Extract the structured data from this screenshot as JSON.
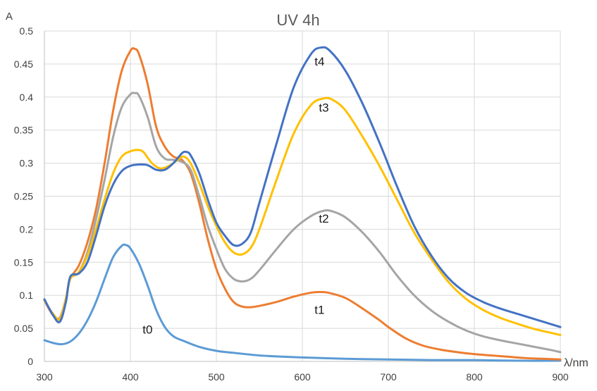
{
  "chart_data": {
    "type": "line",
    "title": "UV 4h",
    "xlabel": "λ/nm",
    "ylabel": "A",
    "xlim": [
      300,
      900
    ],
    "ylim": [
      0,
      0.5
    ],
    "x_ticks": [
      300,
      400,
      500,
      600,
      700,
      800,
      900
    ],
    "y_ticks": [
      0,
      0.05,
      0.1,
      0.15,
      0.2,
      0.25,
      0.3,
      0.35,
      0.4,
      0.45,
      0.5
    ],
    "grid": true,
    "legend": "none",
    "series": [
      {
        "name": "t0",
        "color": "#5B9BD5",
        "points": [
          [
            300,
            0.032
          ],
          [
            310,
            0.028
          ],
          [
            320,
            0.026
          ],
          [
            330,
            0.03
          ],
          [
            340,
            0.042
          ],
          [
            350,
            0.062
          ],
          [
            360,
            0.09
          ],
          [
            370,
            0.125
          ],
          [
            380,
            0.158
          ],
          [
            390,
            0.175
          ],
          [
            395,
            0.176
          ],
          [
            400,
            0.171
          ],
          [
            410,
            0.148
          ],
          [
            420,
            0.115
          ],
          [
            430,
            0.078
          ],
          [
            440,
            0.052
          ],
          [
            450,
            0.038
          ],
          [
            460,
            0.032
          ],
          [
            480,
            0.022
          ],
          [
            500,
            0.016
          ],
          [
            520,
            0.013
          ],
          [
            550,
            0.009
          ],
          [
            580,
            0.007
          ],
          [
            600,
            0.006
          ],
          [
            650,
            0.004
          ],
          [
            700,
            0.003
          ],
          [
            750,
            0.002
          ],
          [
            800,
            0.002
          ],
          [
            850,
            0.001
          ],
          [
            900,
            0.001
          ]
        ]
      },
      {
        "name": "t1",
        "color": "#ED7D31",
        "points": [
          [
            300,
            0.092
          ],
          [
            310,
            0.07
          ],
          [
            318,
            0.066
          ],
          [
            325,
            0.095
          ],
          [
            330,
            0.125
          ],
          [
            340,
            0.145
          ],
          [
            350,
            0.18
          ],
          [
            360,
            0.23
          ],
          [
            370,
            0.3
          ],
          [
            380,
            0.38
          ],
          [
            390,
            0.44
          ],
          [
            400,
            0.47
          ],
          [
            405,
            0.473
          ],
          [
            410,
            0.465
          ],
          [
            420,
            0.42
          ],
          [
            430,
            0.355
          ],
          [
            440,
            0.325
          ],
          [
            450,
            0.31
          ],
          [
            460,
            0.305
          ],
          [
            470,
            0.285
          ],
          [
            480,
            0.24
          ],
          [
            490,
            0.185
          ],
          [
            500,
            0.14
          ],
          [
            510,
            0.11
          ],
          [
            520,
            0.09
          ],
          [
            530,
            0.083
          ],
          [
            540,
            0.082
          ],
          [
            550,
            0.084
          ],
          [
            570,
            0.09
          ],
          [
            590,
            0.098
          ],
          [
            610,
            0.104
          ],
          [
            620,
            0.105
          ],
          [
            630,
            0.104
          ],
          [
            650,
            0.096
          ],
          [
            670,
            0.08
          ],
          [
            690,
            0.062
          ],
          [
            700,
            0.052
          ],
          [
            720,
            0.035
          ],
          [
            740,
            0.024
          ],
          [
            760,
            0.018
          ],
          [
            780,
            0.014
          ],
          [
            800,
            0.011
          ],
          [
            820,
            0.009
          ],
          [
            840,
            0.007
          ],
          [
            860,
            0.005
          ],
          [
            880,
            0.004
          ],
          [
            900,
            0.003
          ]
        ]
      },
      {
        "name": "t2",
        "color": "#A5A5A5",
        "points": [
          [
            300,
            0.092
          ],
          [
            310,
            0.072
          ],
          [
            318,
            0.064
          ],
          [
            325,
            0.095
          ],
          [
            330,
            0.125
          ],
          [
            340,
            0.135
          ],
          [
            350,
            0.165
          ],
          [
            360,
            0.215
          ],
          [
            370,
            0.275
          ],
          [
            380,
            0.34
          ],
          [
            390,
            0.385
          ],
          [
            400,
            0.404
          ],
          [
            405,
            0.406
          ],
          [
            410,
            0.402
          ],
          [
            420,
            0.37
          ],
          [
            430,
            0.325
          ],
          [
            440,
            0.307
          ],
          [
            450,
            0.305
          ],
          [
            460,
            0.302
          ],
          [
            470,
            0.29
          ],
          [
            480,
            0.25
          ],
          [
            490,
            0.205
          ],
          [
            500,
            0.17
          ],
          [
            510,
            0.14
          ],
          [
            520,
            0.125
          ],
          [
            530,
            0.121
          ],
          [
            540,
            0.125
          ],
          [
            550,
            0.138
          ],
          [
            570,
            0.17
          ],
          [
            590,
            0.2
          ],
          [
            610,
            0.22
          ],
          [
            625,
            0.228
          ],
          [
            635,
            0.227
          ],
          [
            650,
            0.218
          ],
          [
            670,
            0.195
          ],
          [
            690,
            0.165
          ],
          [
            710,
            0.13
          ],
          [
            730,
            0.1
          ],
          [
            750,
            0.077
          ],
          [
            770,
            0.06
          ],
          [
            790,
            0.047
          ],
          [
            810,
            0.038
          ],
          [
            830,
            0.032
          ],
          [
            850,
            0.027
          ],
          [
            870,
            0.022
          ],
          [
            890,
            0.017
          ],
          [
            900,
            0.014
          ]
        ]
      },
      {
        "name": "t3",
        "color": "#FFC000",
        "points": [
          [
            300,
            0.092
          ],
          [
            310,
            0.072
          ],
          [
            318,
            0.064
          ],
          [
            325,
            0.095
          ],
          [
            330,
            0.125
          ],
          [
            340,
            0.135
          ],
          [
            350,
            0.16
          ],
          [
            360,
            0.2
          ],
          [
            370,
            0.245
          ],
          [
            380,
            0.285
          ],
          [
            390,
            0.31
          ],
          [
            400,
            0.318
          ],
          [
            408,
            0.32
          ],
          [
            415,
            0.317
          ],
          [
            425,
            0.3
          ],
          [
            435,
            0.292
          ],
          [
            445,
            0.296
          ],
          [
            455,
            0.305
          ],
          [
            462,
            0.31
          ],
          [
            470,
            0.3
          ],
          [
            480,
            0.27
          ],
          [
            490,
            0.235
          ],
          [
            500,
            0.205
          ],
          [
            510,
            0.18
          ],
          [
            520,
            0.165
          ],
          [
            530,
            0.162
          ],
          [
            540,
            0.172
          ],
          [
            550,
            0.2
          ],
          [
            570,
            0.275
          ],
          [
            590,
            0.345
          ],
          [
            610,
            0.388
          ],
          [
            625,
            0.398
          ],
          [
            635,
            0.396
          ],
          [
            650,
            0.38
          ],
          [
            670,
            0.34
          ],
          [
            690,
            0.295
          ],
          [
            710,
            0.245
          ],
          [
            730,
            0.195
          ],
          [
            750,
            0.155
          ],
          [
            770,
            0.12
          ],
          [
            790,
            0.095
          ],
          [
            810,
            0.078
          ],
          [
            830,
            0.066
          ],
          [
            850,
            0.057
          ],
          [
            870,
            0.049
          ],
          [
            890,
            0.043
          ],
          [
            900,
            0.04
          ]
        ]
      },
      {
        "name": "t4",
        "color": "#4472C4",
        "points": [
          [
            300,
            0.094
          ],
          [
            310,
            0.07
          ],
          [
            318,
            0.06
          ],
          [
            325,
            0.09
          ],
          [
            330,
            0.128
          ],
          [
            340,
            0.133
          ],
          [
            350,
            0.15
          ],
          [
            360,
            0.19
          ],
          [
            370,
            0.235
          ],
          [
            380,
            0.268
          ],
          [
            390,
            0.288
          ],
          [
            400,
            0.296
          ],
          [
            410,
            0.298
          ],
          [
            420,
            0.297
          ],
          [
            430,
            0.29
          ],
          [
            440,
            0.29
          ],
          [
            450,
            0.3
          ],
          [
            460,
            0.315
          ],
          [
            465,
            0.317
          ],
          [
            470,
            0.312
          ],
          [
            480,
            0.285
          ],
          [
            490,
            0.245
          ],
          [
            500,
            0.21
          ],
          [
            510,
            0.19
          ],
          [
            520,
            0.176
          ],
          [
            530,
            0.178
          ],
          [
            540,
            0.195
          ],
          [
            550,
            0.24
          ],
          [
            570,
            0.33
          ],
          [
            590,
            0.415
          ],
          [
            610,
            0.465
          ],
          [
            622,
            0.475
          ],
          [
            632,
            0.47
          ],
          [
            650,
            0.44
          ],
          [
            670,
            0.39
          ],
          [
            690,
            0.33
          ],
          [
            710,
            0.265
          ],
          [
            730,
            0.205
          ],
          [
            750,
            0.16
          ],
          [
            770,
            0.126
          ],
          [
            790,
            0.104
          ],
          [
            810,
            0.09
          ],
          [
            830,
            0.08
          ],
          [
            850,
            0.072
          ],
          [
            870,
            0.064
          ],
          [
            890,
            0.056
          ],
          [
            900,
            0.052
          ]
        ]
      }
    ],
    "annotations": [
      {
        "text": "t0",
        "x": 420,
        "y": 0.042
      },
      {
        "text": "t1",
        "x": 620,
        "y": 0.072
      },
      {
        "text": "t2",
        "x": 625,
        "y": 0.21
      },
      {
        "text": "t3",
        "x": 625,
        "y": 0.378
      },
      {
        "text": "t4",
        "x": 620,
        "y": 0.448
      }
    ]
  }
}
